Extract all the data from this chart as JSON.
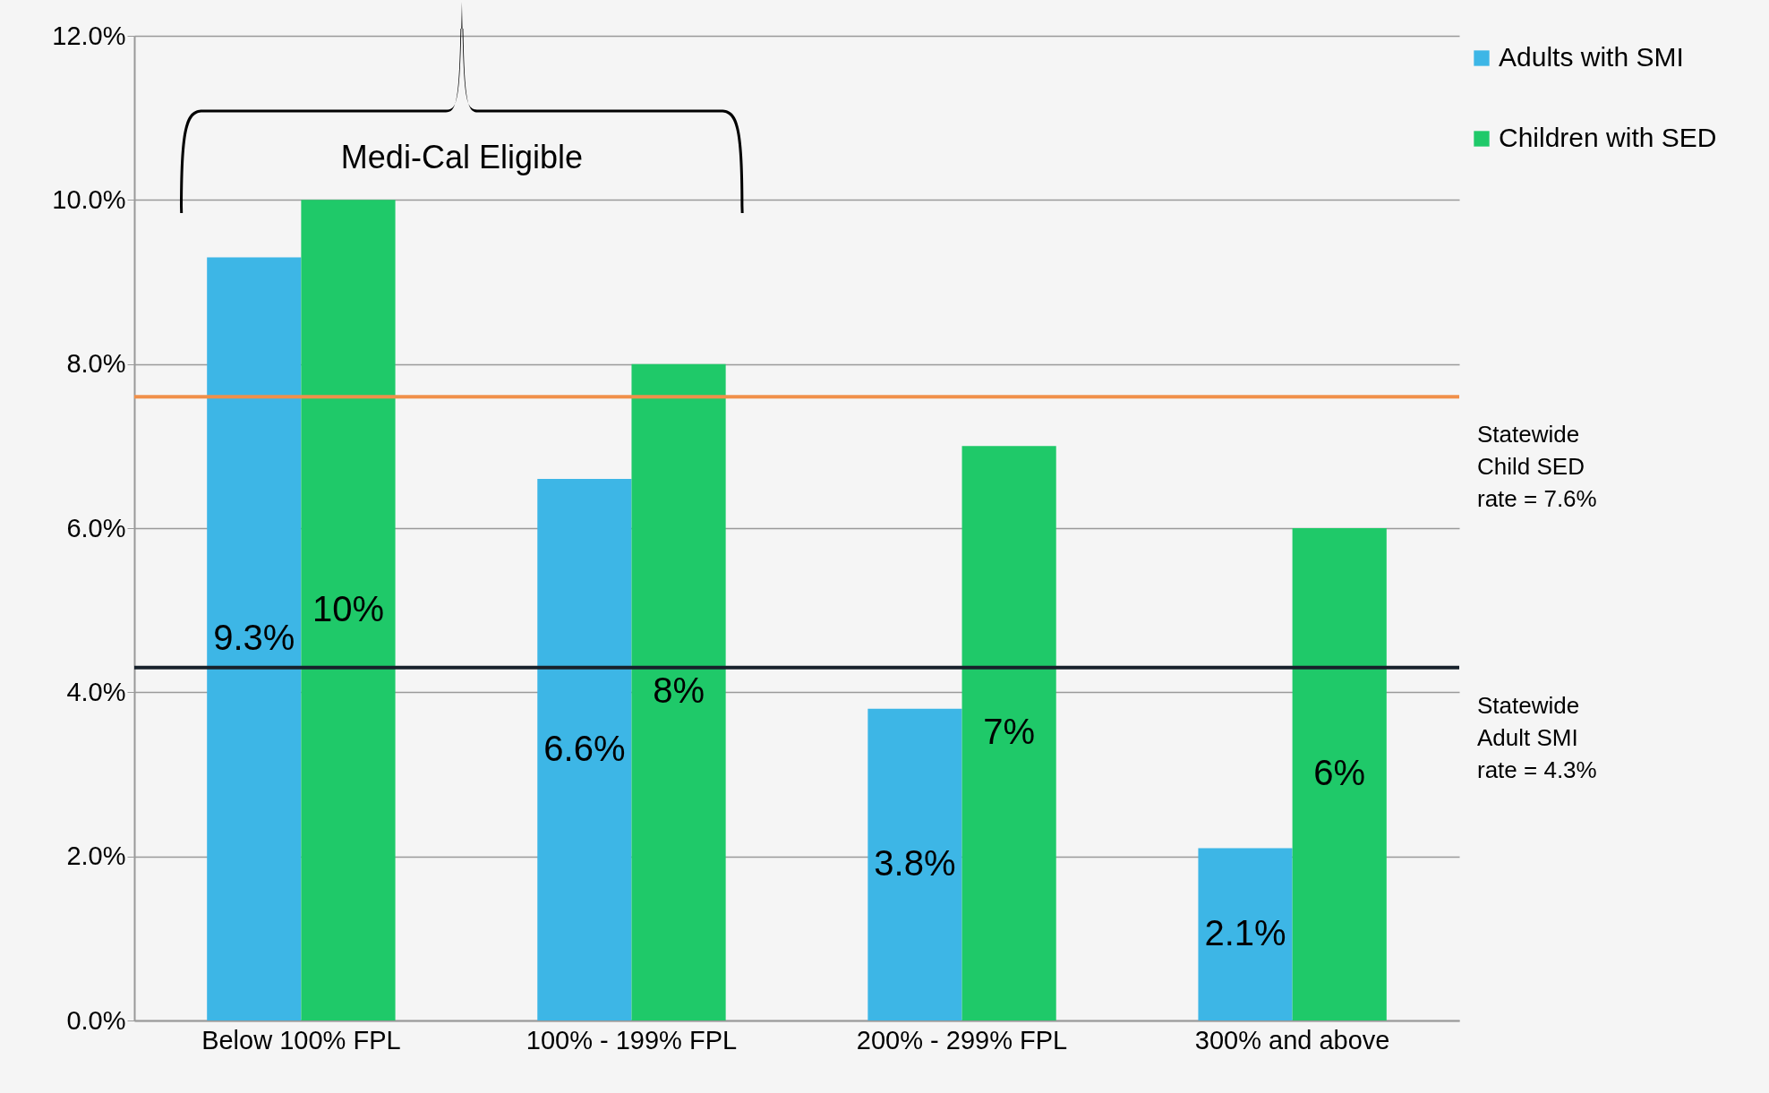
{
  "chart_data": {
    "type": "bar",
    "categories": [
      "Below 100% FPL",
      "100% - 199% FPL",
      "200% - 299% FPL",
      "300% and above"
    ],
    "series": [
      {
        "name": "Adults with SMI",
        "color": "#3db6e6",
        "values": [
          9.3,
          6.6,
          3.8,
          2.1
        ],
        "value_labels": [
          "9.3%",
          "6.6%",
          "3.8%",
          "2.1%"
        ]
      },
      {
        "name": "Children with SED",
        "color": "#1fc969",
        "values": [
          10,
          8,
          7,
          6
        ],
        "value_labels": [
          "10%",
          "8%",
          "7%",
          "6%"
        ]
      }
    ],
    "ylim": [
      0,
      12
    ],
    "yticks": [
      {
        "value": 0,
        "label": "0.0%"
      },
      {
        "value": 2,
        "label": "2.0%"
      },
      {
        "value": 4,
        "label": "4.0%"
      },
      {
        "value": 6,
        "label": "6.0%"
      },
      {
        "value": 8,
        "label": "8.0%"
      },
      {
        "value": 10,
        "label": "10.0%"
      },
      {
        "value": 12,
        "label": "12.0%"
      }
    ],
    "ref_lines": [
      {
        "axis": "y",
        "value": 7.6,
        "label": "Statewide Child SED rate = 7.6%",
        "color": "#f0904a"
      },
      {
        "axis": "y",
        "value": 4.3,
        "label": "Statewide Adult SMI rate = 4.3%",
        "color": "#17212b"
      }
    ],
    "annotations": [
      "Medi-Cal Eligible"
    ],
    "grid": "y",
    "legend": "top right"
  }
}
